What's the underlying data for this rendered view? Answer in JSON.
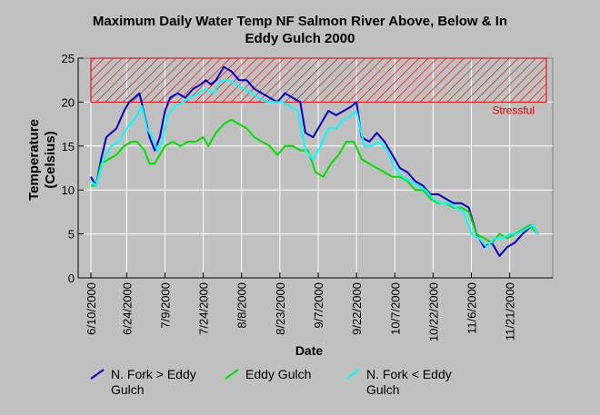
{
  "chart_data": {
    "type": "line",
    "title_lines": [
      "Maximum Daily Water Temp NF Salmon River Above, Below & In",
      "Eddy Gulch 2000"
    ],
    "xlabel": "Date",
    "ylabel_lines": [
      "Temperature",
      "(Celsius)"
    ],
    "ylim": [
      0,
      25
    ],
    "yticks": [
      0,
      5,
      10,
      15,
      20,
      25
    ],
    "xlim": [
      "2000-06-10",
      "2000-12-05"
    ],
    "xticks": [
      "6/10/2000",
      "6/24/2000",
      "7/9/2000",
      "7/24/2000",
      "8/8/2000",
      "8/23/2000",
      "9/7/2000",
      "9/22/2000",
      "10/7/2000",
      "10/22/2000",
      "11/6/2000",
      "11/21/2000"
    ],
    "grid": true,
    "threshold": {
      "label": "Stressful",
      "from": 20,
      "to": 25,
      "color": "#e00000"
    },
    "series": [
      {
        "name": "N. Fork > Eddy Gulch",
        "color": "#0000c8",
        "x": [
          "2000-06-10",
          "2000-06-12",
          "2000-06-14",
          "2000-06-16",
          "2000-06-18",
          "2000-06-20",
          "2000-06-23",
          "2000-06-25",
          "2000-06-27",
          "2000-06-29",
          "2000-07-01",
          "2000-07-03",
          "2000-07-05",
          "2000-07-07",
          "2000-07-09",
          "2000-07-11",
          "2000-07-14",
          "2000-07-17",
          "2000-07-20",
          "2000-07-23",
          "2000-07-25",
          "2000-07-27",
          "2000-07-29",
          "2000-08-01",
          "2000-08-04",
          "2000-08-07",
          "2000-08-10",
          "2000-08-13",
          "2000-08-16",
          "2000-08-19",
          "2000-08-22",
          "2000-08-25",
          "2000-08-28",
          "2000-08-31",
          "2000-09-02",
          "2000-09-05",
          "2000-09-08",
          "2000-09-11",
          "2000-09-14",
          "2000-09-17",
          "2000-09-20",
          "2000-09-22",
          "2000-09-24",
          "2000-09-27",
          "2000-09-30",
          "2000-10-03",
          "2000-10-06",
          "2000-10-09",
          "2000-10-12",
          "2000-10-15",
          "2000-10-18",
          "2000-10-21",
          "2000-10-24",
          "2000-10-27",
          "2000-10-30",
          "2000-11-02",
          "2000-11-05",
          "2000-11-08",
          "2000-11-11",
          "2000-11-14",
          "2000-11-17",
          "2000-11-20",
          "2000-11-23",
          "2000-11-26",
          "2000-11-28",
          "2000-11-30",
          "2000-12-02"
        ],
        "values": [
          11.5,
          10.5,
          13.5,
          16,
          16.5,
          17,
          19,
          20,
          20.5,
          21,
          18.5,
          16,
          14.5,
          16,
          19,
          20.5,
          21,
          20.5,
          21.5,
          22,
          22.5,
          22,
          22.5,
          24,
          23.5,
          22.5,
          22.5,
          21.5,
          21,
          20.5,
          20,
          21,
          20.5,
          20,
          16.5,
          16,
          17.5,
          19,
          18.5,
          19,
          19.5,
          20,
          16,
          15.5,
          16.5,
          15.5,
          14,
          12.5,
          12,
          11,
          10.5,
          9.5,
          9.5,
          9,
          8.5,
          8.5,
          8,
          5,
          3.5,
          4,
          2.5,
          3.5,
          4,
          5,
          5.5,
          6,
          5
        ]
      },
      {
        "name": "Eddy Gulch",
        "color": "#00e000",
        "x": [
          "2000-06-10",
          "2000-06-12",
          "2000-06-14",
          "2000-06-17",
          "2000-06-20",
          "2000-06-23",
          "2000-06-26",
          "2000-06-28",
          "2000-07-01",
          "2000-07-03",
          "2000-07-05",
          "2000-07-07",
          "2000-07-09",
          "2000-07-12",
          "2000-07-15",
          "2000-07-18",
          "2000-07-21",
          "2000-07-24",
          "2000-07-26",
          "2000-07-29",
          "2000-08-01",
          "2000-08-04",
          "2000-08-07",
          "2000-08-10",
          "2000-08-13",
          "2000-08-16",
          "2000-08-19",
          "2000-08-22",
          "2000-08-25",
          "2000-08-28",
          "2000-08-31",
          "2000-09-03",
          "2000-09-06",
          "2000-09-09",
          "2000-09-12",
          "2000-09-15",
          "2000-09-18",
          "2000-09-21",
          "2000-09-24",
          "2000-09-27",
          "2000-09-30",
          "2000-10-03",
          "2000-10-06",
          "2000-10-09",
          "2000-10-12",
          "2000-10-15",
          "2000-10-18",
          "2000-10-21",
          "2000-10-24",
          "2000-10-27",
          "2000-10-30",
          "2000-11-02",
          "2000-11-05",
          "2000-11-08",
          "2000-11-11",
          "2000-11-14",
          "2000-11-17",
          "2000-11-20",
          "2000-11-23",
          "2000-11-26",
          "2000-11-29",
          "2000-12-02"
        ],
        "values": [
          10.5,
          10.5,
          13,
          13.5,
          14,
          15,
          15.5,
          15.5,
          14.5,
          13,
          13,
          14,
          15,
          15.5,
          15,
          15.5,
          15.5,
          16,
          15,
          16.5,
          17.5,
          18,
          17.5,
          17,
          16,
          15.5,
          15,
          14,
          15,
          15,
          14.5,
          14.5,
          12,
          11.5,
          13,
          14,
          15.5,
          15.5,
          13.5,
          13,
          12.5,
          12,
          11.5,
          11.5,
          11,
          10,
          10,
          9,
          8.5,
          8.5,
          8,
          8,
          7.5,
          5,
          4.5,
          4,
          5,
          4.5,
          5,
          5.5,
          6,
          5
        ]
      },
      {
        "name": "N. Fork < Eddy Gulch",
        "color": "#00ffff",
        "x": [
          "2000-06-10",
          "2000-06-12",
          "2000-06-15",
          "2000-06-18",
          "2000-06-21",
          "2000-06-24",
          "2000-06-27",
          "2000-06-30",
          "2000-07-02",
          "2000-07-04",
          "2000-07-06",
          "2000-07-08",
          "2000-07-10",
          "2000-07-13",
          "2000-07-16",
          "2000-07-19",
          "2000-07-22",
          "2000-07-25",
          "2000-07-28",
          "2000-07-31",
          "2000-08-03",
          "2000-08-06",
          "2000-08-09",
          "2000-08-12",
          "2000-08-15",
          "2000-08-18",
          "2000-08-21",
          "2000-08-24",
          "2000-08-27",
          "2000-08-30",
          "2000-09-02",
          "2000-09-05",
          "2000-09-08",
          "2000-09-11",
          "2000-09-14",
          "2000-09-17",
          "2000-09-20",
          "2000-09-22",
          "2000-09-25",
          "2000-09-28",
          "2000-10-01",
          "2000-10-04",
          "2000-10-07",
          "2000-10-10",
          "2000-10-13",
          "2000-10-16",
          "2000-10-19",
          "2000-10-22",
          "2000-10-25",
          "2000-10-28",
          "2000-10-31",
          "2000-11-03",
          "2000-11-06",
          "2000-11-09",
          "2000-11-12",
          "2000-11-15",
          "2000-11-18",
          "2000-11-21",
          "2000-11-24",
          "2000-11-27",
          "2000-11-30",
          "2000-12-02"
        ],
        "values": [
          11,
          10.5,
          13.5,
          15,
          15.5,
          17,
          18,
          19.5,
          17,
          16,
          14.5,
          15.5,
          18.5,
          19.5,
          20,
          20.5,
          21,
          21.5,
          21,
          22.5,
          22.5,
          22,
          21.5,
          21,
          20.5,
          20,
          20,
          20,
          19.5,
          19,
          14.5,
          13.5,
          15,
          17,
          17,
          18,
          18.5,
          19,
          15,
          15,
          15.5,
          14.5,
          12.5,
          11.5,
          11,
          10.5,
          10,
          9,
          8.5,
          8.5,
          8,
          7.5,
          5,
          4.5,
          3.5,
          4.5,
          4.5,
          5,
          5,
          5.5,
          6,
          5
        ]
      }
    ],
    "legend": {
      "placement": "bottom",
      "entries": [
        {
          "lines": [
            "N. Fork > Eddy",
            "Gulch"
          ]
        },
        {
          "lines": [
            "Eddy Gulch"
          ]
        },
        {
          "lines": [
            "N. Fork < Eddy",
            "Gulch"
          ]
        }
      ]
    }
  }
}
